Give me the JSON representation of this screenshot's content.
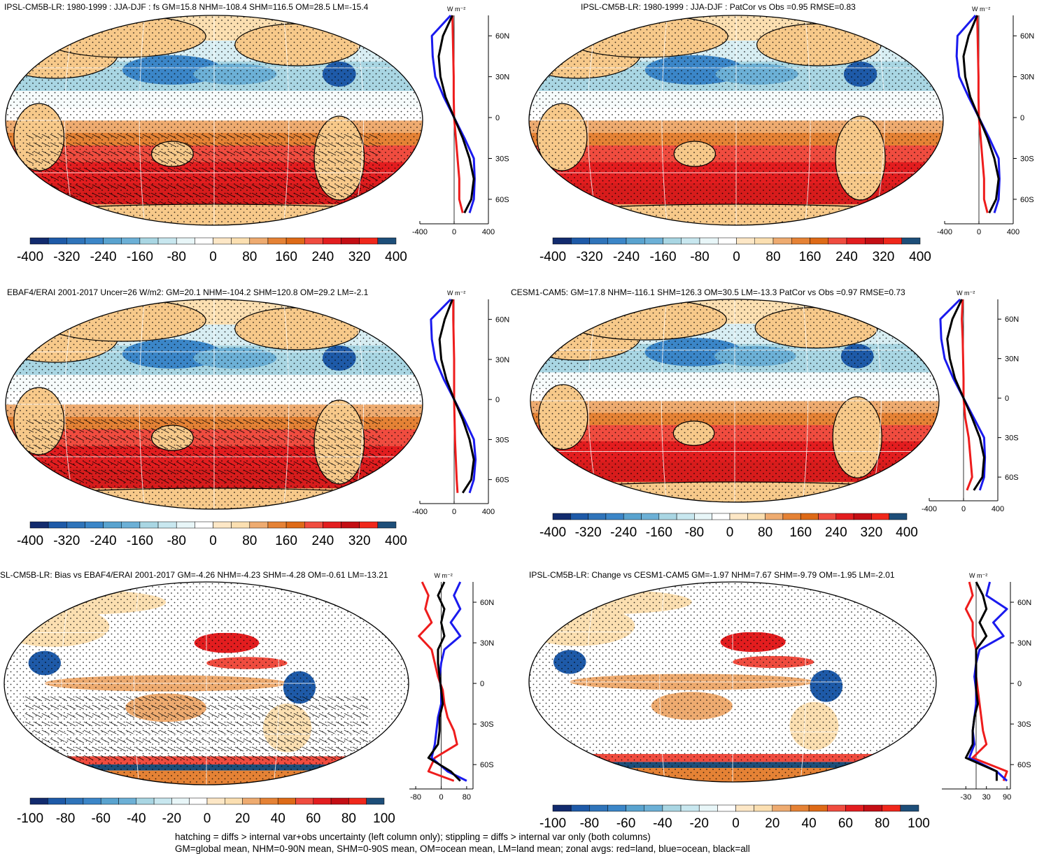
{
  "footer": {
    "line1": "hatching = diffs > internal var+obs uncertainty (left column only); stippling = diffs > internal var only (both columns)",
    "line2": "GM=global mean, NHM=0-90N mean, SHM=0-90S mean, OM=ocean mean, LM=land mean; zonal avgs: red=land, blue=ocean, black=all"
  },
  "colors": {
    "land": "#ee1c1c",
    "ocean": "#1a1aee",
    "all": "#000000",
    "palette": [
      "#122b6e",
      "#1e5aa8",
      "#3b86c8",
      "#6cb0d6",
      "#a9d6e3",
      "#d8eef3",
      "#f6fbfb",
      "#ffffff",
      "#fbdfb1",
      "#eeab70",
      "#e58235",
      "#de6a17",
      "#f04c3f",
      "#e31d1f",
      "#c40e14",
      "#a30a10",
      "#d71c1c",
      "#f0271b",
      "#d93a2d",
      "#1d4e79"
    ]
  },
  "panels": [
    {
      "id": "p1",
      "title": "IPSL-CM5B-LR: 1980-1999 : JJA-DJF : fs GM=15.8 NHM=-108.4 SHM=116.5 OM=28.5 LM=-15.4",
      "unit": "W m⁻²",
      "colorbar_labels": [
        "-400",
        "-320",
        "-240",
        "-160",
        "-80",
        "0",
        "80",
        "160",
        "240",
        "320",
        "400"
      ],
      "zonal_xlabels": [
        "-400",
        "0",
        "400"
      ],
      "lat_labels": [
        "60N",
        "30N",
        "0",
        "30S",
        "60S"
      ]
    },
    {
      "id": "p2",
      "title": "IPSL-CM5B-LR: 1980-1999 : JJA-DJF : PatCor vs Obs =0.95 RMSE=0.83",
      "unit": "W m⁻²",
      "colorbar_labels": [
        "-400",
        "-320",
        "-240",
        "-160",
        "-80",
        "0",
        "80",
        "160",
        "240",
        "320",
        "400"
      ],
      "zonal_xlabels": [
        "-400",
        "0",
        "400"
      ],
      "lat_labels": [
        "60N",
        "30N",
        "0",
        "30S",
        "60S"
      ]
    },
    {
      "id": "p3",
      "title": "EBAF4/ERAI 2001-2017 Uncer=26 W/m2: GM=20.1 NHM=-104.2 SHM=120.8 OM=29.2 LM=-2.1",
      "unit": "W m⁻²",
      "colorbar_labels": [
        "-400",
        "-320",
        "-240",
        "-160",
        "-80",
        "0",
        "80",
        "160",
        "240",
        "320",
        "400"
      ],
      "zonal_xlabels": [
        "-400",
        "0",
        "400"
      ],
      "lat_labels": [
        "60N",
        "30N",
        "0",
        "30S",
        "60S"
      ]
    },
    {
      "id": "p4",
      "title": "CESM1-CAM5: GM=17.8 NHM=-116.1 SHM=126.3 OM=30.5 LM=-13.3 PatCor vs Obs =0.97 RMSE=0.73",
      "unit": "W m⁻²",
      "colorbar_labels": [
        "-400",
        "-320",
        "-240",
        "-160",
        "-80",
        "0",
        "80",
        "160",
        "240",
        "320",
        "400"
      ],
      "zonal_xlabels": [
        "-400",
        "0",
        "400"
      ],
      "lat_labels": [
        "60N",
        "30N",
        "0",
        "30S",
        "60S"
      ]
    },
    {
      "id": "p5",
      "title": "SL-CM5B-LR: Bias vs EBAF4/ERAI 2001-2017 GM=-4.26 NHM=-4.23 SHM=-4.28 OM=-0.61 LM=-13.21",
      "unit": "W m⁻²",
      "colorbar_labels": [
        "-100",
        "-80",
        "-60",
        "-40",
        "-20",
        "0",
        "20",
        "40",
        "60",
        "80",
        "100"
      ],
      "zonal_xlabels": [
        "-80",
        "0",
        "80"
      ],
      "lat_labels": [
        "60N",
        "30N",
        "0",
        "30S",
        "60S"
      ]
    },
    {
      "id": "p6",
      "title": "IPSL-CM5B-LR: Change vs CESM1-CAM5 GM=-1.97 NHM=7.67 SHM=-9.79 OM=-1.95 LM=-2.01",
      "unit": "W m⁻²",
      "colorbar_labels": [
        "-100",
        "-80",
        "-60",
        "-40",
        "-20",
        "0",
        "20",
        "40",
        "60",
        "80",
        "100"
      ],
      "zonal_xlabels": [
        "-30",
        "30",
        "90"
      ],
      "lat_labels": [
        "60N",
        "30N",
        "0",
        "30S",
        "60S"
      ]
    }
  ],
  "chart_data": [
    {
      "type": "heatmap",
      "title": "IPSL-CM5B-LR: 1980-1999 : JJA-DJF : fs GM=15.8 NHM=-108.4 SHM=116.5 OM=28.5 LM=-15.4",
      "colorbar_range": [
        -400,
        400
      ],
      "zonal_mean": {
        "lat": [
          75,
          60,
          45,
          30,
          15,
          0,
          -15,
          -30,
          -45,
          -60,
          -70
        ],
        "series": [
          {
            "name": "land",
            "values": [
              -20,
              -15,
              -10,
              -5,
              -5,
              0,
              20,
              40,
              60,
              60,
              100
            ]
          },
          {
            "name": "ocean",
            "values": [
              -40,
              -260,
              -250,
              -220,
              -120,
              0,
              120,
              230,
              240,
              230,
              180
            ]
          },
          {
            "name": "all",
            "values": [
              -20,
              -130,
              -180,
              -160,
              -100,
              0,
              100,
              180,
              230,
              200,
              120
            ]
          }
        ]
      }
    },
    {
      "type": "heatmap",
      "title": "IPSL-CM5B-LR: 1980-1999 : JJA-DJF : PatCor vs Obs =0.95 RMSE=0.83",
      "colorbar_range": [
        -400,
        400
      ],
      "zonal_mean": {
        "lat": [
          75,
          60,
          45,
          30,
          15,
          0,
          -15,
          -30,
          -45,
          -60,
          -70
        ],
        "series": [
          {
            "name": "land",
            "values": [
              -20,
              -15,
              -10,
              -5,
              -5,
              0,
              20,
              40,
              60,
              60,
              100
            ]
          },
          {
            "name": "ocean",
            "values": [
              -40,
              -250,
              -260,
              -230,
              -120,
              0,
              120,
              230,
              240,
              230,
              180
            ]
          },
          {
            "name": "all",
            "values": [
              -20,
              -120,
              -180,
              -160,
              -100,
              0,
              100,
              180,
              230,
              200,
              120
            ]
          }
        ]
      }
    },
    {
      "type": "heatmap",
      "title": "EBAF4/ERAI 2001-2017 Uncer=26 W/m2: GM=20.1 NHM=-104.2 SHM=120.8 OM=29.2 LM=-2.1",
      "colorbar_range": [
        -400,
        400
      ],
      "zonal_mean": {
        "lat": [
          75,
          60,
          45,
          30,
          15,
          0,
          -15,
          -30,
          -45,
          -60,
          -70
        ],
        "series": [
          {
            "name": "land",
            "values": [
              -10,
              -10,
              -5,
              0,
              0,
              0,
              5,
              10,
              20,
              30,
              40
            ]
          },
          {
            "name": "ocean",
            "values": [
              -40,
              -270,
              -260,
              -220,
              -120,
              0,
              120,
              230,
              250,
              230,
              180
            ]
          },
          {
            "name": "all",
            "values": [
              -20,
              -110,
              -170,
              -150,
              -90,
              0,
              100,
              180,
              230,
              200,
              100
            ]
          }
        ]
      }
    },
    {
      "type": "heatmap",
      "title": "CESM1-CAM5: GM=17.8 NHM=-116.1 SHM=126.3 OM=30.5 LM=-13.3 PatCor vs Obs =0.97 RMSE=0.73",
      "colorbar_range": [
        -400,
        400
      ],
      "zonal_mean": {
        "lat": [
          75,
          60,
          45,
          30,
          15,
          0,
          -15,
          -30,
          -45,
          -60,
          -70
        ],
        "series": [
          {
            "name": "land",
            "values": [
              -10,
              -20,
              -10,
              -5,
              0,
              0,
              20,
              60,
              80,
              100,
              40
            ]
          },
          {
            "name": "ocean",
            "values": [
              -40,
              -270,
              -260,
              -220,
              -120,
              0,
              120,
              240,
              250,
              240,
              190
            ]
          },
          {
            "name": "all",
            "values": [
              -20,
              -130,
              -190,
              -160,
              -100,
              0,
              100,
              190,
              240,
              220,
              120
            ]
          }
        ]
      }
    },
    {
      "type": "heatmap",
      "title": "SL-CM5B-LR: Bias vs EBAF4/ERAI 2001-2017 GM=-4.26 NHM=-4.23 SHM=-4.28 OM=-0.61 LM=-13.21",
      "colorbar_range": [
        -100,
        100
      ],
      "zonal_mean": {
        "lat": [
          75,
          65,
          55,
          45,
          35,
          25,
          15,
          5,
          -5,
          -15,
          -25,
          -35,
          -45,
          -55,
          -65,
          -72
        ],
        "series": [
          {
            "name": "land",
            "values": [
              -60,
              -40,
              -50,
              -30,
              -70,
              -30,
              -20,
              -10,
              5,
              10,
              20,
              40,
              50,
              -20,
              -40,
              40
            ]
          },
          {
            "name": "ocean",
            "values": [
              60,
              40,
              60,
              30,
              60,
              10,
              0,
              -5,
              0,
              0,
              -10,
              -15,
              -20,
              -30,
              20,
              80
            ]
          },
          {
            "name": "all",
            "values": [
              10,
              -10,
              10,
              0,
              10,
              -10,
              -10,
              -5,
              0,
              5,
              -5,
              -5,
              -10,
              -40,
              30,
              60
            ]
          }
        ]
      }
    },
    {
      "type": "heatmap",
      "title": "IPSL-CM5B-LR: Change vs CESM1-CAM5 GM=-1.97 NHM=7.67 SHM=-9.79 OM=-1.95 LM=-2.01",
      "colorbar_range": [
        -100,
        100
      ],
      "zonal_mean": {
        "lat": [
          75,
          65,
          55,
          45,
          35,
          25,
          15,
          5,
          -5,
          -15,
          -25,
          -35,
          -45,
          -55,
          -65,
          -72
        ],
        "series": [
          {
            "name": "land",
            "values": [
              -20,
              -10,
              -30,
              -10,
              -10,
              0,
              0,
              0,
              5,
              10,
              15,
              20,
              30,
              -10,
              90,
              80
            ]
          },
          {
            "name": "ocean",
            "values": [
              40,
              30,
              90,
              50,
              80,
              10,
              0,
              -5,
              0,
              0,
              -5,
              -10,
              -5,
              -20,
              60,
              90
            ]
          },
          {
            "name": "all",
            "values": [
              0,
              20,
              30,
              10,
              30,
              0,
              0,
              0,
              0,
              5,
              -5,
              -10,
              -10,
              -30,
              60,
              60
            ]
          }
        ]
      }
    }
  ]
}
